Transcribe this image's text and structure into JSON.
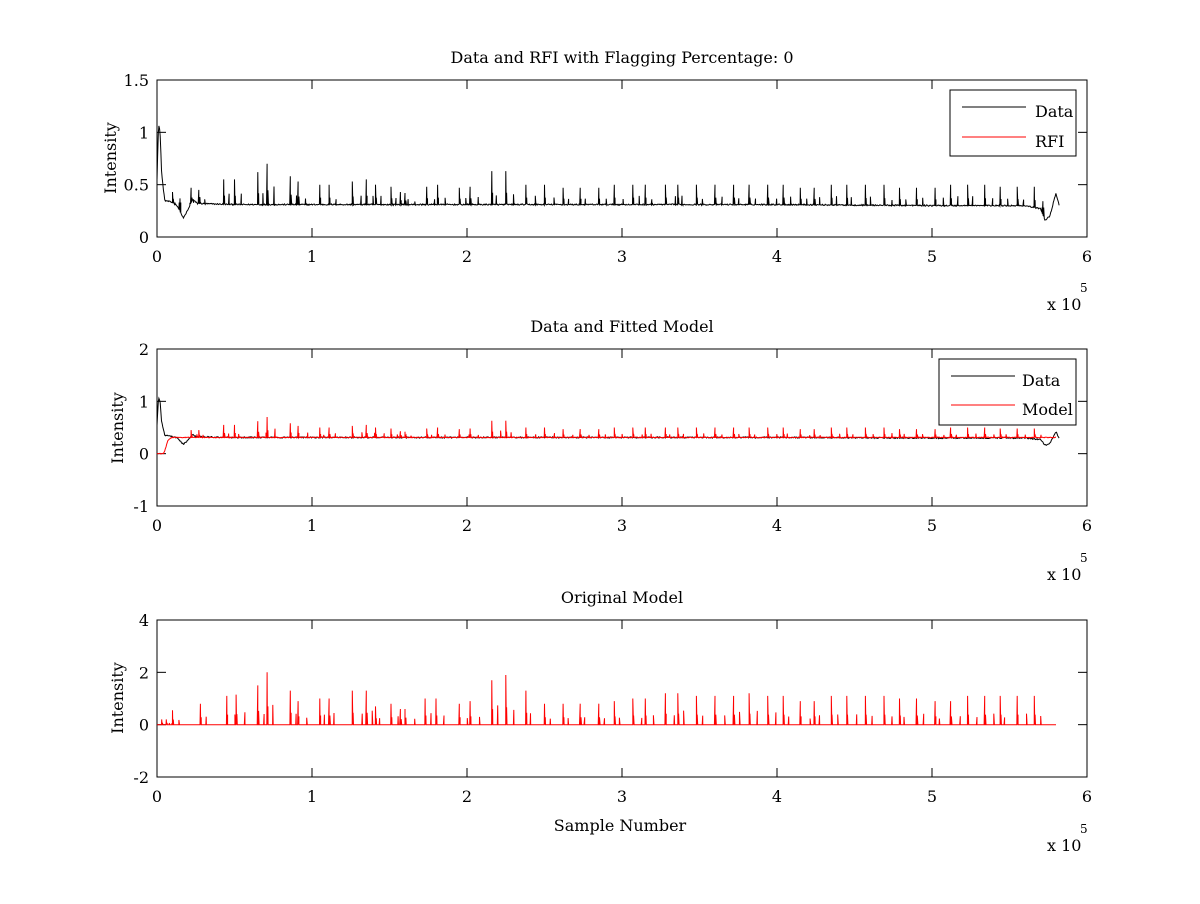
{
  "figure": {
    "background": "#ffffff",
    "data_color": "#000000",
    "rfi_color": "#ff0000"
  },
  "chart_data": [
    {
      "type": "line",
      "title": "Data and RFI with Flagging Percentage: 0",
      "xlabel": "",
      "ylabel": "Intensity",
      "xlim": [
        0,
        6
      ],
      "ylim": [
        0,
        1.5
      ],
      "x_ticks": [
        "0",
        "1",
        "2",
        "3",
        "4",
        "5",
        "6"
      ],
      "y_ticks": [
        "0",
        "0.5",
        "1",
        "1.5"
      ],
      "x_multiplier": "x 10",
      "x_exponent": "5",
      "legend": {
        "placement": "top-right",
        "entries": [
          "Data",
          "RFI"
        ]
      },
      "series": [
        {
          "name": "Data",
          "color": "#000000",
          "baseline_points": [
            [
              0.0,
              0.55
            ],
            [
              0.01,
              1.08
            ],
            [
              0.02,
              1.0
            ],
            [
              0.03,
              0.6
            ],
            [
              0.05,
              0.35
            ],
            [
              0.1,
              0.33
            ],
            [
              0.13,
              0.3
            ],
            [
              0.17,
              0.18
            ],
            [
              0.2,
              0.26
            ],
            [
              0.23,
              0.36
            ],
            [
              0.26,
              0.32
            ],
            [
              0.5,
              0.31
            ],
            [
              1.0,
              0.31
            ],
            [
              2.0,
              0.31
            ],
            [
              3.0,
              0.31
            ],
            [
              4.0,
              0.31
            ],
            [
              5.0,
              0.3
            ],
            [
              5.6,
              0.3
            ],
            [
              5.7,
              0.27
            ],
            [
              5.73,
              0.16
            ],
            [
              5.76,
              0.2
            ],
            [
              5.8,
              0.42
            ],
            [
              5.82,
              0.3
            ]
          ],
          "spike_x": [
            0.1,
            0.22,
            0.27,
            0.43,
            0.5,
            0.65,
            0.71,
            0.86,
            0.91,
            1.05,
            1.11,
            1.26,
            1.35,
            1.41,
            1.51,
            1.57,
            1.6,
            1.74,
            1.81,
            1.95,
            2.02,
            2.16,
            2.25,
            2.38,
            2.5,
            2.62,
            2.73,
            2.85,
            2.95,
            3.07,
            3.15,
            3.28,
            3.36,
            3.48,
            3.6,
            3.72,
            3.82,
            3.94,
            4.04,
            4.15,
            4.24,
            4.35,
            4.45,
            4.57,
            4.69,
            4.79,
            4.9,
            5.02,
            5.12,
            5.23,
            5.34,
            5.44,
            5.55,
            5.66
          ],
          "spike_y": [
            0.43,
            0.47,
            0.45,
            0.55,
            0.55,
            0.62,
            0.7,
            0.58,
            0.53,
            0.5,
            0.5,
            0.53,
            0.55,
            0.5,
            0.48,
            0.43,
            0.42,
            0.48,
            0.5,
            0.47,
            0.48,
            0.63,
            0.63,
            0.5,
            0.5,
            0.47,
            0.47,
            0.47,
            0.5,
            0.5,
            0.5,
            0.5,
            0.5,
            0.5,
            0.5,
            0.5,
            0.5,
            0.5,
            0.5,
            0.47,
            0.47,
            0.5,
            0.5,
            0.5,
            0.5,
            0.47,
            0.47,
            0.47,
            0.5,
            0.5,
            0.5,
            0.48,
            0.48,
            0.48
          ]
        },
        {
          "name": "RFI",
          "color": "#ff0000"
        }
      ]
    },
    {
      "type": "line",
      "title": "Data and Fitted Model",
      "xlabel": "",
      "ylabel": "Intensity",
      "xlim": [
        0,
        6
      ],
      "ylim": [
        -1,
        2
      ],
      "x_ticks": [
        "0",
        "1",
        "2",
        "3",
        "4",
        "5",
        "6"
      ],
      "y_ticks": [
        "-1",
        "0",
        "1",
        "2"
      ],
      "x_multiplier": "x 10",
      "x_exponent": "5",
      "legend": {
        "placement": "top-right",
        "entries": [
          "Data",
          "Model"
        ]
      },
      "series": [
        {
          "name": "Data",
          "color": "#000000",
          "baseline_points": [
            [
              0.0,
              0.55
            ],
            [
              0.01,
              1.08
            ],
            [
              0.02,
              1.0
            ],
            [
              0.03,
              0.6
            ],
            [
              0.05,
              0.35
            ],
            [
              0.1,
              0.33
            ],
            [
              0.13,
              0.3
            ],
            [
              0.17,
              0.18
            ],
            [
              0.2,
              0.26
            ],
            [
              0.23,
              0.36
            ],
            [
              0.26,
              0.32
            ],
            [
              0.5,
              0.31
            ],
            [
              1.0,
              0.31
            ],
            [
              2.0,
              0.31
            ],
            [
              3.0,
              0.31
            ],
            [
              4.0,
              0.31
            ],
            [
              5.0,
              0.3
            ],
            [
              5.6,
              0.3
            ],
            [
              5.7,
              0.27
            ],
            [
              5.73,
              0.16
            ],
            [
              5.76,
              0.2
            ],
            [
              5.8,
              0.42
            ],
            [
              5.82,
              0.3
            ]
          ]
        },
        {
          "name": "Model",
          "color": "#ff0000",
          "baseline_points": [
            [
              0.0,
              0.0
            ],
            [
              0.04,
              0.0
            ],
            [
              0.05,
              0.05
            ],
            [
              0.07,
              0.25
            ],
            [
              0.09,
              0.3
            ],
            [
              0.1,
              0.31
            ],
            [
              1.0,
              0.31
            ],
            [
              2.0,
              0.31
            ],
            [
              3.0,
              0.31
            ],
            [
              4.0,
              0.31
            ],
            [
              5.0,
              0.31
            ],
            [
              5.8,
              0.31
            ]
          ],
          "spike_x": [
            0.22,
            0.27,
            0.43,
            0.5,
            0.65,
            0.71,
            0.86,
            0.91,
            1.05,
            1.11,
            1.26,
            1.35,
            1.41,
            1.51,
            1.57,
            1.6,
            1.74,
            1.81,
            1.95,
            2.02,
            2.16,
            2.25,
            2.38,
            2.5,
            2.62,
            2.73,
            2.85,
            2.95,
            3.07,
            3.15,
            3.28,
            3.36,
            3.48,
            3.6,
            3.72,
            3.82,
            3.94,
            4.04,
            4.15,
            4.24,
            4.35,
            4.45,
            4.57,
            4.69,
            4.79,
            4.9,
            5.02,
            5.12,
            5.23,
            5.34,
            5.44,
            5.55,
            5.66
          ],
          "spike_y": [
            0.45,
            0.45,
            0.55,
            0.55,
            0.62,
            0.7,
            0.58,
            0.53,
            0.5,
            0.5,
            0.53,
            0.55,
            0.5,
            0.48,
            0.43,
            0.42,
            0.48,
            0.5,
            0.47,
            0.48,
            0.63,
            0.63,
            0.5,
            0.5,
            0.47,
            0.47,
            0.47,
            0.5,
            0.5,
            0.5,
            0.5,
            0.5,
            0.5,
            0.5,
            0.5,
            0.5,
            0.5,
            0.5,
            0.47,
            0.47,
            0.5,
            0.5,
            0.5,
            0.5,
            0.47,
            0.47,
            0.47,
            0.5,
            0.5,
            0.5,
            0.48,
            0.48,
            0.48
          ]
        }
      ]
    },
    {
      "type": "line",
      "title": "Original Model",
      "xlabel": "Sample Number",
      "ylabel": "Intensity",
      "xlim": [
        0,
        6
      ],
      "ylim": [
        -2,
        4
      ],
      "x_ticks": [
        "0",
        "1",
        "2",
        "3",
        "4",
        "5",
        "6"
      ],
      "y_ticks": [
        "-2",
        "0",
        "2",
        "4"
      ],
      "x_multiplier": "x 10",
      "x_exponent": "5",
      "series": [
        {
          "color": "#ff0000",
          "baseline_points": [
            [
              0.0,
              0.0
            ],
            [
              5.8,
              0.0
            ]
          ],
          "spike_x": [
            0.03,
            0.06,
            0.1,
            0.28,
            0.45,
            0.51,
            0.65,
            0.71,
            0.86,
            0.91,
            1.05,
            1.11,
            1.26,
            1.35,
            1.41,
            1.51,
            1.57,
            1.6,
            1.73,
            1.8,
            1.95,
            2.02,
            2.16,
            2.25,
            2.38,
            2.5,
            2.62,
            2.73,
            2.85,
            2.95,
            3.07,
            3.15,
            3.28,
            3.36,
            3.48,
            3.6,
            3.72,
            3.82,
            3.94,
            4.04,
            4.15,
            4.24,
            4.35,
            4.45,
            4.57,
            4.69,
            4.79,
            4.9,
            5.02,
            5.12,
            5.23,
            5.34,
            5.44,
            5.55,
            5.66
          ],
          "spike_y": [
            0.2,
            0.2,
            0.55,
            0.8,
            1.1,
            1.15,
            1.5,
            2.0,
            1.3,
            0.9,
            1.0,
            1.0,
            1.3,
            1.3,
            0.7,
            0.8,
            0.6,
            0.6,
            1.0,
            1.0,
            0.8,
            0.9,
            1.7,
            1.9,
            1.3,
            0.8,
            0.8,
            0.8,
            0.8,
            0.9,
            1.0,
            1.0,
            1.2,
            1.2,
            1.1,
            1.1,
            1.1,
            1.2,
            1.1,
            1.1,
            0.9,
            0.9,
            1.1,
            1.1,
            1.1,
            1.1,
            1.0,
            1.0,
            0.9,
            0.9,
            1.1,
            1.1,
            1.1,
            1.1,
            1.1
          ]
        }
      ]
    }
  ]
}
